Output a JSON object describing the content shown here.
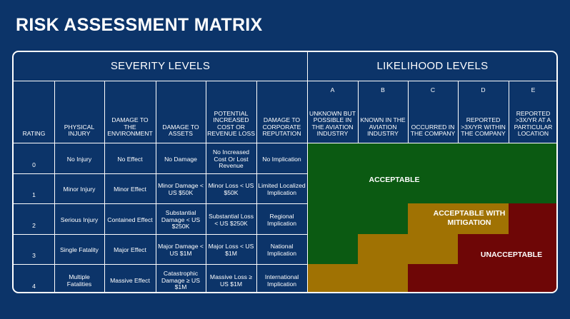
{
  "title": "RISK ASSESSMENT MATRIX",
  "severity_header": "SEVERITY LEVELS",
  "likelihood_header": "LIKELIHOOD LEVELS",
  "severity_columns": [
    "RATING",
    "PHYSICAL INJURY",
    "DAMAGE TO THE ENVIRONMENT",
    "DAMAGE TO ASSETS",
    "POTENTIAL INCREASED COST OR REVENUE LOSS",
    "DAMAGE TO CORPORATE REPUTATION"
  ],
  "likelihood_columns": [
    {
      "letter": "A",
      "label": "UNKNOWN BUT POSSIBLE IN THE AVIATION INDUSTRY"
    },
    {
      "letter": "B",
      "label": "KNOWN IN THE AVIATION INDUSTRY"
    },
    {
      "letter": "C",
      "label": "OCCURRED IN THE COMPANY"
    },
    {
      "letter": "D",
      "label": "REPORTED >3X/YR WITHIN THE COMPANY"
    },
    {
      "letter": "E",
      "label": "REPORTED >3X/YR AT A PARTICULAR LOCATION"
    }
  ],
  "rows": [
    {
      "rating": "0",
      "cells": [
        "No Injury",
        "No Effect",
        "No Damage",
        "No Increased Cost Or Lost Revenue",
        "No Implication"
      ]
    },
    {
      "rating": "1",
      "cells": [
        "Minor Injury",
        "Minor Effect",
        "Minor Damage < US $50K",
        "Minor Loss < US $50K",
        "Limited Localized Implication"
      ]
    },
    {
      "rating": "2",
      "cells": [
        "Serious Injury",
        "Contained Effect",
        "Substantial Damage < US $250K",
        "Substantial Loss < US $250K",
        "Regional Implication"
      ]
    },
    {
      "rating": "3",
      "cells": [
        "Single Fatality",
        "Major Effect",
        "Major Damage < US $1M",
        "Major Loss < US $1M",
        "National Implication"
      ]
    },
    {
      "rating": "4",
      "cells": [
        "Multiple Fatalities",
        "Massive Effect",
        "Catastrophic Damage ≥ US $1M",
        "Massive Loss ≥ US $1M",
        "International Implication"
      ]
    }
  ],
  "zones": {
    "acceptable": {
      "label": "ACCEPTABLE",
      "color": "#0b5a12"
    },
    "mitigation": {
      "label": "ACCEPTABLE WITH MITIGATION",
      "color": "#a07203"
    },
    "unacceptable": {
      "label": "UNACCEPTABLE",
      "color": "#6e0606"
    }
  },
  "zone_map": [
    [
      "acceptable",
      "acceptable",
      "acceptable",
      "acceptable",
      "acceptable"
    ],
    [
      "acceptable",
      "acceptable",
      "acceptable",
      "acceptable",
      "acceptable"
    ],
    [
      "acceptable",
      "acceptable",
      "mitigation",
      "mitigation",
      "unacceptable"
    ],
    [
      "acceptable",
      "mitigation",
      "mitigation",
      "unacceptable",
      "unacceptable"
    ],
    [
      "mitigation",
      "mitigation",
      "unacceptable",
      "unacceptable",
      "unacceptable"
    ]
  ],
  "colors": {
    "background": "#0c3469",
    "grid": "#ffffff"
  }
}
